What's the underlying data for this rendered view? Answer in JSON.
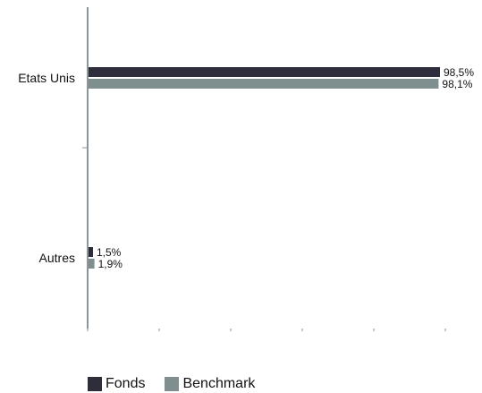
{
  "chart_data": {
    "type": "bar",
    "orientation": "horizontal",
    "categories": [
      "Etats Unis",
      "Autres"
    ],
    "series": [
      {
        "name": "Fonds",
        "values": [
          98.5,
          1.5
        ],
        "labels": [
          "98,5%",
          "1,5%"
        ],
        "color": "#2e2d3c"
      },
      {
        "name": "Benchmark",
        "values": [
          98.1,
          1.9
        ],
        "labels": [
          "98,1%",
          "1,9%"
        ],
        "color": "#7f8f8f"
      }
    ],
    "xlim": [
      0,
      100
    ],
    "grid": false,
    "legend": "bottom-left",
    "axis_color": "#8a9699"
  }
}
